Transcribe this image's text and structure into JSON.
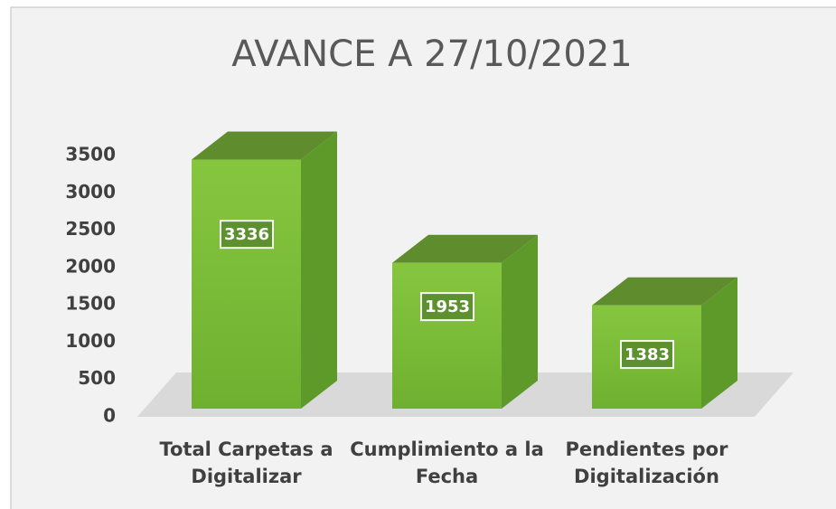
{
  "chart_data": {
    "type": "bar3d",
    "title": "AVANCE A 27/10/2021",
    "categories": [
      "Total Carpetas a Digitalizar",
      "Cumplimiento a la Fecha",
      "Pendientes por Digitalización"
    ],
    "values": [
      3336,
      1953,
      1383
    ],
    "color": "#7dc242",
    "ylim": [
      0,
      3500
    ],
    "yticks": [
      0,
      500,
      1000,
      1500,
      2000,
      2500,
      3000,
      3500
    ],
    "grid": false
  }
}
